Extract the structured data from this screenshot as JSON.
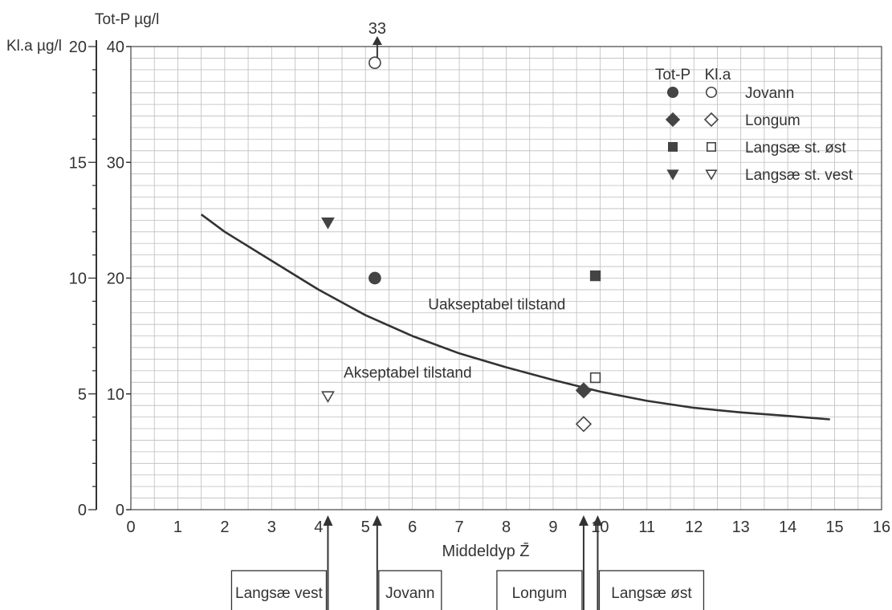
{
  "chart_data": {
    "type": "scatter",
    "xlabel": "Middeldyp Z̄",
    "ylabel_left": "Kl.a µg/l",
    "ylabel_right": "Tot-P µg/l",
    "xlim": [
      0,
      16
    ],
    "ylim_totp": [
      0,
      40
    ],
    "ylim_kla": [
      0,
      20
    ],
    "x_ticks": [
      "0",
      "1",
      "2",
      "3",
      "4",
      "5",
      "6",
      "7",
      "8",
      "9",
      "10",
      "11",
      "12",
      "13",
      "14",
      "15",
      "16"
    ],
    "totp_ticks": [
      {
        "v": 0,
        "label": "0"
      },
      {
        "v": 10,
        "label": "10"
      },
      {
        "v": 20,
        "label": "20"
      },
      {
        "v": 30,
        "label": "30"
      },
      {
        "v": 40,
        "label": "40"
      }
    ],
    "kla_ticks": [
      {
        "v": 0,
        "label": "0"
      },
      {
        "v": 5,
        "label": "5"
      },
      {
        "v": 10,
        "label": "10"
      },
      {
        "v": 15,
        "label": "15"
      },
      {
        "v": 20,
        "label": "20"
      }
    ],
    "grid": true,
    "boundary_curve": {
      "x": [
        1.5,
        2,
        3,
        4,
        5,
        6,
        7,
        8,
        9,
        10,
        11,
        12,
        13,
        14,
        14.9
      ],
      "totp": [
        25.5,
        24.0,
        21.5,
        19.0,
        16.8,
        15.0,
        13.5,
        12.3,
        11.2,
        10.2,
        9.4,
        8.8,
        8.4,
        8.1,
        7.8
      ]
    },
    "region_labels": {
      "upper": {
        "text": "Uakseptabel tilstand",
        "x": 7.8,
        "totp": 17.3
      },
      "lower": {
        "text": "Akseptabel tilstand",
        "x": 5.9,
        "totp": 11.4
      }
    },
    "legend": {
      "col_totp": "Tot-P",
      "col_kla": "Kl.a",
      "entries": [
        "Jovann",
        "Longum",
        "Langsæ st. øst",
        "Langsæ st. vest"
      ]
    },
    "series": [
      {
        "name": "Jovann",
        "totp_marker": "circle-filled",
        "kla_marker": "circle-open",
        "x": 5.2,
        "totp": 20.0,
        "kla": 19.3
      },
      {
        "name": "Longum",
        "totp_marker": "diamond-filled",
        "kla_marker": "diamond-open",
        "x": 9.65,
        "totp": 10.3,
        "kla": 3.7
      },
      {
        "name": "Langsæ st. øst",
        "totp_marker": "square-filled",
        "kla_marker": "square-open",
        "x": 9.9,
        "totp": 20.2,
        "kla": 5.7
      },
      {
        "name": "Langsæ st. vest",
        "totp_marker": "triangle-filled",
        "kla_marker": "triangle-open",
        "x": 4.2,
        "totp": 24.8,
        "kla": 4.9
      }
    ],
    "off_scale": {
      "label": "33",
      "x": 5.2
    },
    "x_markers": [
      {
        "label": "Langsæ vest",
        "x": 4.2
      },
      {
        "label": "Jovann",
        "x": 5.25
      },
      {
        "label": "Longum",
        "x": 9.65
      },
      {
        "label": "Langsæ øst",
        "x": 9.95
      }
    ]
  }
}
